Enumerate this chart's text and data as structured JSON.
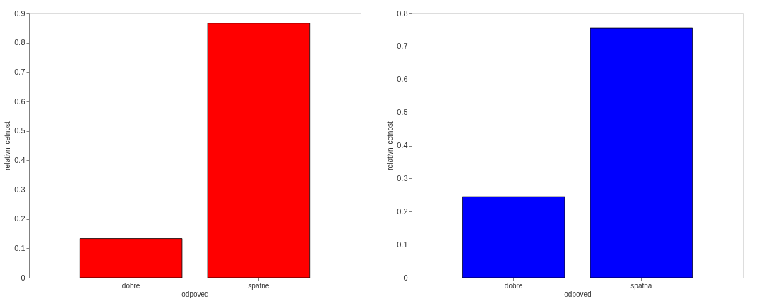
{
  "chart_data": [
    {
      "type": "bar",
      "categories": [
        "dobre",
        "spatne"
      ],
      "values": [
        0.133,
        0.867
      ],
      "color": "#ff0000",
      "xlabel": "odpoved",
      "ylabel": "relativni cetnost",
      "ylim": [
        0,
        0.9
      ],
      "yticks": [
        0,
        0.1,
        0.2,
        0.3,
        0.4,
        0.5,
        0.6,
        0.7,
        0.8,
        0.9
      ],
      "grid": false
    },
    {
      "type": "bar",
      "categories": [
        "dobre",
        "spatna"
      ],
      "values": [
        0.245,
        0.755
      ],
      "color": "#0000ff",
      "xlabel": "odpoved",
      "ylabel": "relativni cetnost",
      "ylim": [
        0,
        0.8
      ],
      "yticks": [
        0,
        0.1,
        0.2,
        0.3,
        0.4,
        0.5,
        0.6,
        0.7,
        0.8
      ],
      "grid": false
    }
  ]
}
